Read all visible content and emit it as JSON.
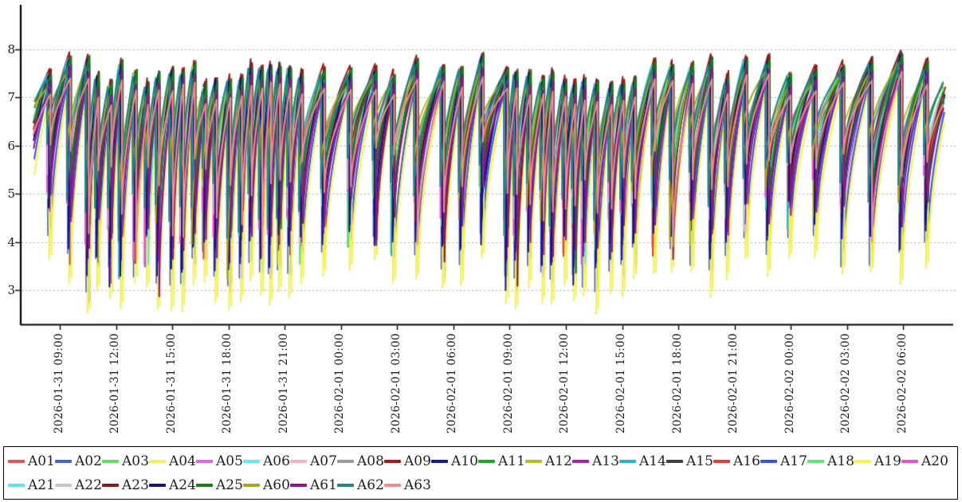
{
  "chart_data": {
    "type": "line",
    "title": "",
    "grid": "horizontal-dashed",
    "x_axis": {
      "tick_labels": [
        "2026-01-31 09:00",
        "2026-01-31 12:00",
        "2026-01-31 15:00",
        "2026-01-31 18:00",
        "2026-01-31 21:00",
        "2026-02-01 00:00",
        "2026-02-01 03:00",
        "2026-02-01 06:00",
        "2026-02-01 09:00",
        "2026-02-01 12:00",
        "2026-02-01 15:00",
        "2026-02-01 18:00",
        "2026-02-01 21:00",
        "2026-02-02 00:00",
        "2026-02-02 03:00",
        "2026-02-02 06:00"
      ],
      "first_tick_minutes": 540,
      "minutes_per_tick": 180,
      "start_minutes": 455,
      "end_minutes": 3376
    },
    "y_axis": {
      "tick_labels": [
        "3",
        "4",
        "5",
        "6",
        "7",
        "8"
      ],
      "ticks": [
        3,
        4,
        5,
        6,
        7,
        8
      ],
      "visible_range": [
        2.2,
        8.87
      ]
    },
    "legend": {
      "position": "bottom",
      "items_per_row": 20
    },
    "series": [
      {
        "name": "A01",
        "color": "#e05555",
        "peak_adj": -0.14,
        "trough_adj": 1.55,
        "phase_min": 2
      },
      {
        "name": "A02",
        "color": "#4a63dd",
        "peak_adj": -0.05,
        "trough_adj": 0.55,
        "phase_min": -4
      },
      {
        "name": "A03",
        "color": "#63e063",
        "peak_adj": 0.04,
        "trough_adj": 1.7,
        "phase_min": 5
      },
      {
        "name": "A04",
        "color": "#f2ee5e",
        "peak_adj": -0.16,
        "trough_adj": 0.0,
        "phase_min": 0
      },
      {
        "name": "A05",
        "color": "#e168e1",
        "peak_adj": -0.26,
        "trough_adj": 1.95,
        "phase_min": -6
      },
      {
        "name": "A06",
        "color": "#66e6ef",
        "peak_adj": -0.02,
        "trough_adj": 1.9,
        "phase_min": 6
      },
      {
        "name": "A07",
        "color": "#f2b6c1",
        "peak_adj": -0.3,
        "trough_adj": 2.2,
        "phase_min": 3
      },
      {
        "name": "A08",
        "color": "#9a9a9a",
        "peak_adj": -0.34,
        "trough_adj": 2.05,
        "phase_min": -7
      },
      {
        "name": "A09",
        "color": "#a01a1a",
        "peak_adj": 0.18,
        "trough_adj": 1.75,
        "phase_min": 1
      },
      {
        "name": "A10",
        "color": "#17179a",
        "peak_adj": 0.02,
        "trough_adj": 0.9,
        "phase_min": -2
      },
      {
        "name": "A11",
        "color": "#21a821",
        "peak_adj": 0.08,
        "trough_adj": 1.8,
        "phase_min": 6
      },
      {
        "name": "A12",
        "color": "#bcbc21",
        "peak_adj": -0.1,
        "trough_adj": 2.25,
        "phase_min": -5
      },
      {
        "name": "A13",
        "color": "#a821a8",
        "peak_adj": -0.08,
        "trough_adj": 1.15,
        "phase_min": 3
      },
      {
        "name": "A14",
        "color": "#2fb4c7",
        "peak_adj": 0.03,
        "trough_adj": 1.85,
        "phase_min": -6
      },
      {
        "name": "A15",
        "color": "#404040",
        "peak_adj": 0.12,
        "trough_adj": 1.9,
        "phase_min": 4
      },
      {
        "name": "A16",
        "color": "#e83c3c",
        "peak_adj": -0.12,
        "trough_adj": 1.6,
        "phase_min": -3
      },
      {
        "name": "A17",
        "color": "#3c51e8",
        "peak_adj": -0.07,
        "trough_adj": 0.6,
        "phase_min": 7
      },
      {
        "name": "A18",
        "color": "#59e873",
        "peak_adj": 0.02,
        "trough_adj": 1.75,
        "phase_min": -4
      },
      {
        "name": "A19",
        "color": "#f3f34c",
        "peak_adj": -0.18,
        "trough_adj": 0.12,
        "phase_min": 7
      },
      {
        "name": "A20",
        "color": "#ef4fd0",
        "peak_adj": -0.24,
        "trough_adj": 1.9,
        "phase_min": -7
      },
      {
        "name": "A21",
        "color": "#59e8e8",
        "peak_adj": -0.06,
        "trough_adj": 2.0,
        "phase_min": 5
      },
      {
        "name": "A22",
        "color": "#c6c6c6",
        "peak_adj": -0.3,
        "trough_adj": 2.1,
        "phase_min": -5
      },
      {
        "name": "A23",
        "color": "#8c1a1a",
        "peak_adj": 0.15,
        "trough_adj": 1.7,
        "phase_min": 6
      },
      {
        "name": "A24",
        "color": "#15157d",
        "peak_adj": 0.05,
        "trough_adj": 0.95,
        "phase_min": -1
      },
      {
        "name": "A25",
        "color": "#178017",
        "peak_adj": 0.12,
        "trough_adj": 1.8,
        "phase_min": 7
      },
      {
        "name": "A60",
        "color": "#a8a818",
        "peak_adj": -0.12,
        "trough_adj": 2.3,
        "phase_min": -6
      },
      {
        "name": "A61",
        "color": "#8c178c",
        "peak_adj": -0.1,
        "trough_adj": 1.2,
        "phase_min": 5
      },
      {
        "name": "A62",
        "color": "#1f8585",
        "peak_adj": 0.0,
        "trough_adj": 1.95,
        "phase_min": -7
      },
      {
        "name": "A63",
        "color": "#f28b8b",
        "peak_adj": -0.28,
        "trough_adj": 2.15,
        "phase_min": 4
      }
    ],
    "pattern": {
      "description": "29 overlapping sawtooth cycle series: slow concave rise to peaks ~7.2-7.8 then sharp drop; deepest dips ~2.5-3.9 reached by yellow (A04/A19) then blue (A02/A17) series; short frequent cycles during daytime windows, longer cycles overnight",
      "rise_exponent": 0.55,
      "period_min": {
        "dense": [
          28,
          46
        ],
        "semi": [
          44,
          66
        ],
        "night": [
          58,
          90
        ],
        "late": [
          76,
          102
        ]
      },
      "dense_windows": [
        {
          "day": 0,
          "start_hour": 10.1,
          "end_hour": 21.4
        },
        {
          "day": 1,
          "start_hour": 8.6,
          "end_hour": 15.3
        }
      ],
      "semi_window": {
        "day": 1,
        "start_hour": 15.3,
        "end_hour": 21.5
      },
      "late_after_minutes": 2880,
      "peak_base": {
        "dense": [
          7.16,
          7.62
        ],
        "other": [
          7.33,
          7.78
        ]
      },
      "trough_base": {
        "dense": [
          2.5,
          3.25
        ],
        "semi": [
          2.8,
          3.5
        ],
        "night": [
          3.0,
          3.68
        ]
      }
    }
  },
  "colors": {
    "background": "#ffffff",
    "grid": "#ababab",
    "axis": "#000000",
    "text": "#1c1c1c",
    "legend_border": "#000000"
  }
}
